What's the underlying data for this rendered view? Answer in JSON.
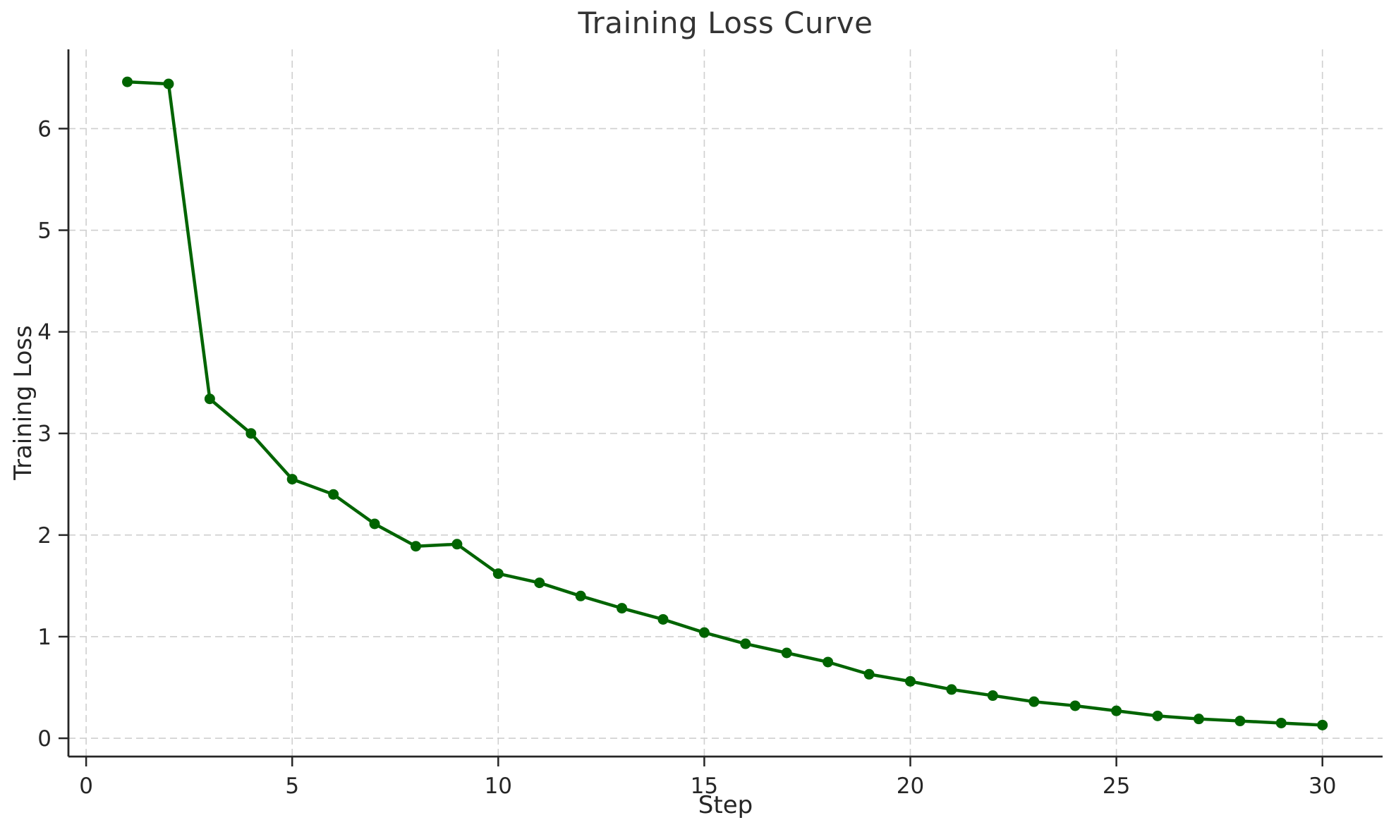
{
  "chart_data": {
    "type": "line",
    "title": "Training Loss Curve",
    "xlabel": "Step",
    "ylabel": "Training Loss",
    "series": [
      {
        "name": "training-loss",
        "x": [
          1,
          2,
          3,
          4,
          5,
          6,
          7,
          8,
          9,
          10,
          11,
          12,
          13,
          14,
          15,
          16,
          17,
          18,
          19,
          20,
          21,
          22,
          23,
          24,
          25,
          26,
          27,
          28,
          29,
          30
        ],
        "y": [
          6.46,
          6.44,
          3.34,
          3.0,
          2.55,
          2.4,
          2.11,
          1.89,
          1.91,
          1.62,
          1.53,
          1.4,
          1.28,
          1.17,
          1.04,
          0.93,
          0.84,
          0.75,
          0.63,
          0.56,
          0.48,
          0.42,
          0.36,
          0.32,
          0.27,
          0.22,
          0.19,
          0.17,
          0.15,
          0.13
        ]
      }
    ],
    "xticks": [
      0,
      5,
      10,
      15,
      20,
      25,
      30
    ],
    "yticks": [
      0,
      1,
      2,
      3,
      4,
      5,
      6
    ],
    "xlim": [
      -0.43,
      31.46
    ],
    "ylim": [
      -0.18,
      6.78
    ],
    "grid": true,
    "grid_style": "dashed",
    "legend_position": "none",
    "colors": {
      "line": "#006400",
      "marker": "#006400",
      "grid": "#cfcfcf",
      "spine": "#262626",
      "tick_text": "#262626",
      "title_text": "#333333",
      "background": "#ffffff"
    },
    "line_width": 4.5,
    "marker_radius": 7.5
  }
}
